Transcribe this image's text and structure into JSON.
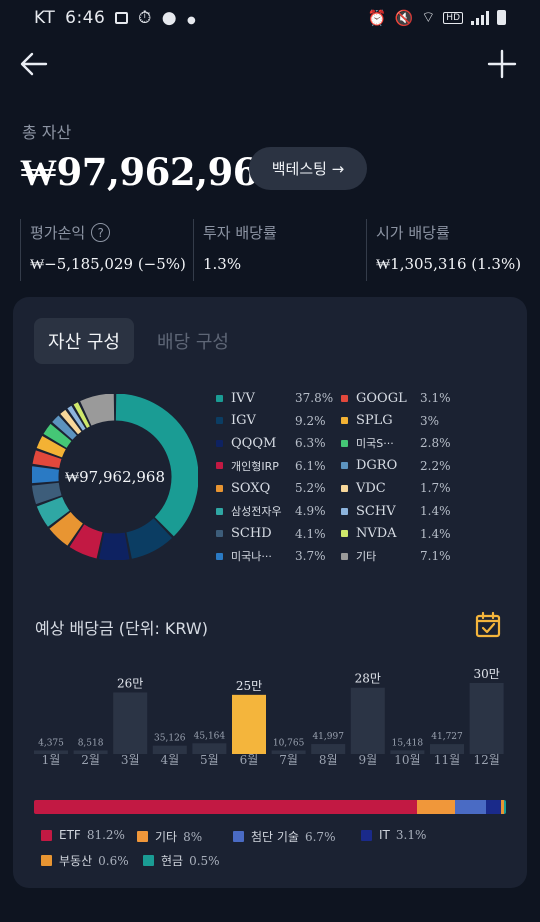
{
  "status_bar": {
    "carrier": "KT",
    "time": "6:46",
    "hd_label": "HD"
  },
  "header": {
    "back_icon": "arrow-left-icon",
    "add_icon": "plus-icon"
  },
  "summary": {
    "total_label": "총 자산",
    "total_value": "₩97,962,968",
    "backtest_label": "백테스팅 →",
    "stats": [
      {
        "label": "평가손익",
        "value": "₩−5,185,029 (−5%)",
        "help": "?"
      },
      {
        "label": "투자 배당률",
        "value": "1.3%"
      },
      {
        "label": "시가 배당률",
        "value": "₩1,305,316 (1.3%)"
      }
    ]
  },
  "tabs": [
    {
      "label": "자산 구성"
    },
    {
      "label": "배당 구성"
    }
  ],
  "allocation": {
    "center_value": "₩97,962,968",
    "items": [
      {
        "name": "IVV",
        "pct": "37.8%",
        "value": 37.8,
        "color": "#1a9c94"
      },
      {
        "name": "IGV",
        "pct": "9.2%",
        "value": 9.2,
        "color": "#0b3d63"
      },
      {
        "name": "QQQM",
        "pct": "6.3%",
        "value": 6.3,
        "color": "#0e2261"
      },
      {
        "name": "개인형IRP",
        "pct": "6.1%",
        "value": 6.1,
        "color": "#c21943"
      },
      {
        "name": "SOXQ",
        "pct": "5.2%",
        "value": 5.2,
        "color": "#e89532"
      },
      {
        "name": "삼성전자우",
        "pct": "4.9%",
        "value": 4.9,
        "color": "#2fa7a4"
      },
      {
        "name": "SCHD",
        "pct": "4.1%",
        "value": 4.1,
        "color": "#3d5d7a"
      },
      {
        "name": "미국나···",
        "pct": "3.7%",
        "value": 3.7,
        "color": "#2a7ac4"
      },
      {
        "name": "GOOGL",
        "pct": "3.1%",
        "value": 3.1,
        "color": "#e2483c"
      },
      {
        "name": "SPLG",
        "pct": "3%",
        "value": 3.0,
        "color": "#f3b234"
      },
      {
        "name": "미국S···",
        "pct": "2.8%",
        "value": 2.8,
        "color": "#45c776"
      },
      {
        "name": "DGRO",
        "pct": "2.2%",
        "value": 2.2,
        "color": "#5c93bf"
      },
      {
        "name": "VDC",
        "pct": "1.7%",
        "value": 1.7,
        "color": "#f7d79a"
      },
      {
        "name": "SCHV",
        "pct": "1.4%",
        "value": 1.4,
        "color": "#8db4dd"
      },
      {
        "name": "NVDA",
        "pct": "1.4%",
        "value": 1.4,
        "color": "#cfe86b"
      },
      {
        "name": "기타",
        "pct": "7.1%",
        "value": 7.1,
        "color": "#9a9a9a"
      }
    ]
  },
  "dividends": {
    "title": "예상 배당금 (단위: KRW)",
    "calendar_icon": "calendar-check-icon",
    "months": [
      {
        "month": "1월",
        "label": "4,375",
        "value": 4375
      },
      {
        "month": "2월",
        "label": "8,518",
        "value": 8518
      },
      {
        "month": "3월",
        "label": "26만",
        "value": 260000
      },
      {
        "month": "4월",
        "label": "35,126",
        "value": 35126
      },
      {
        "month": "5월",
        "label": "45,164",
        "value": 45164
      },
      {
        "month": "6월",
        "label": "25만",
        "value": 250000,
        "highlight": true
      },
      {
        "month": "7월",
        "label": "10,765",
        "value": 10765
      },
      {
        "month": "8월",
        "label": "41,997",
        "value": 41997
      },
      {
        "month": "9월",
        "label": "28만",
        "value": 280000
      },
      {
        "month": "10월",
        "label": "15,418",
        "value": 15418
      },
      {
        "month": "11월",
        "label": "41,727",
        "value": 41727
      },
      {
        "month": "12월",
        "label": "30만",
        "value": 300000
      }
    ],
    "bar_color": "#2b3445",
    "highlight_color": "#f4b53c"
  },
  "categories": [
    {
      "name": "ETF",
      "pct": "81.2%",
      "value": 81.2,
      "color": "#c21943"
    },
    {
      "name": "기타",
      "pct": "8%",
      "value": 8.0,
      "color": "#f0973a"
    },
    {
      "name": "첨단 기술",
      "pct": "6.7%",
      "value": 6.7,
      "color": "#4a6bc4"
    },
    {
      "name": "IT",
      "pct": "3.1%",
      "value": 3.1,
      "color": "#1a2a8a"
    },
    {
      "name": "부동산",
      "pct": "0.6%",
      "value": 0.6,
      "color": "#e89532"
    },
    {
      "name": "현금",
      "pct": "0.5%",
      "value": 0.5,
      "color": "#1a9c94"
    }
  ]
}
